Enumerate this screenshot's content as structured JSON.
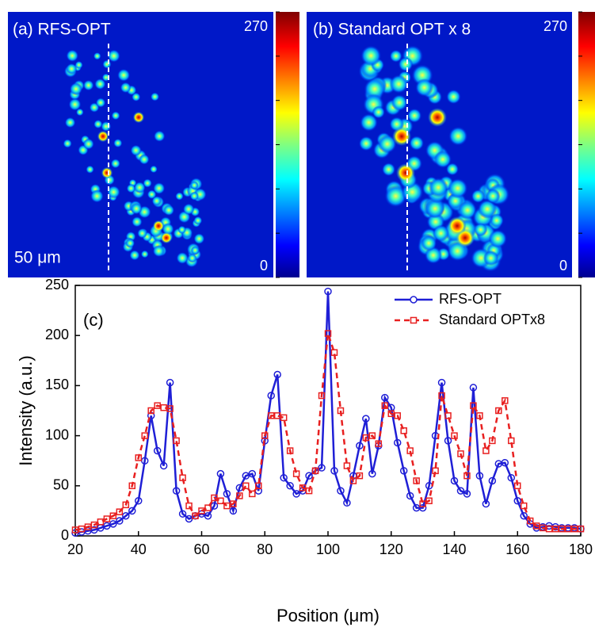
{
  "panels": [
    {
      "label": "(a) RFS-OPT",
      "max": "270",
      "min": "0",
      "scale_bar": "50 μm"
    },
    {
      "label": "(b) Standard OPT x 8",
      "max": "270",
      "min": "0"
    }
  ],
  "chart_data": {
    "type": "line",
    "label": "(c)",
    "x_label": "Position (μm)",
    "y_label": "Intensity (a.u.)",
    "x": [
      20,
      22,
      24,
      26,
      28,
      30,
      32,
      34,
      36,
      38,
      40,
      42,
      44,
      46,
      48,
      50,
      52,
      54,
      56,
      58,
      60,
      62,
      64,
      66,
      68,
      70,
      72,
      74,
      76,
      78,
      80,
      82,
      84,
      86,
      88,
      90,
      92,
      94,
      96,
      98,
      100,
      102,
      104,
      106,
      108,
      110,
      112,
      114,
      116,
      118,
      120,
      122,
      124,
      126,
      128,
      130,
      132,
      134,
      136,
      138,
      140,
      142,
      144,
      146,
      148,
      150,
      152,
      154,
      156,
      158,
      160,
      162,
      164,
      166,
      168,
      170,
      172,
      174,
      176,
      178,
      180
    ],
    "series": [
      {
        "name": "RFS-OPT",
        "color": "#1f1fd6",
        "marker": "circle",
        "dash": "solid",
        "values": [
          3,
          4,
          5,
          6,
          8,
          10,
          12,
          15,
          20,
          25,
          35,
          75,
          120,
          85,
          70,
          153,
          45,
          22,
          17,
          20,
          22,
          20,
          30,
          62,
          42,
          25,
          48,
          60,
          62,
          45,
          95,
          140,
          161,
          58,
          50,
          42,
          45,
          60,
          65,
          68,
          244,
          65,
          45,
          33,
          60,
          90,
          117,
          62,
          90,
          138,
          128,
          93,
          65,
          40,
          28,
          28,
          50,
          100,
          153,
          95,
          55,
          45,
          42,
          148,
          60,
          32,
          55,
          72,
          73,
          58,
          35,
          20,
          12,
          8,
          9,
          10,
          9,
          8,
          8,
          8,
          7
        ]
      },
      {
        "name": "Standard OPTx8",
        "color": "#e82020",
        "marker": "square",
        "dash": "dashed",
        "values": [
          6,
          7,
          9,
          11,
          14,
          17,
          20,
          24,
          31,
          50,
          78,
          100,
          125,
          130,
          128,
          127,
          95,
          58,
          30,
          20,
          25,
          28,
          38,
          35,
          30,
          32,
          40,
          50,
          42,
          50,
          100,
          120,
          120,
          118,
          85,
          62,
          48,
          45,
          65,
          140,
          202,
          183,
          125,
          70,
          55,
          60,
          98,
          100,
          92,
          130,
          122,
          120,
          105,
          85,
          55,
          32,
          35,
          65,
          140,
          120,
          100,
          82,
          60,
          130,
          120,
          85,
          95,
          125,
          135,
          95,
          50,
          30,
          15,
          10,
          8,
          7,
          7,
          7,
          7,
          7,
          7
        ]
      }
    ],
    "xlim": [
      20,
      180
    ],
    "ylim": [
      0,
      250
    ],
    "xticks": [
      20,
      40,
      60,
      80,
      100,
      120,
      140,
      160,
      180
    ],
    "yticks": [
      0,
      50,
      100,
      150,
      200,
      250
    ],
    "legend": "upper right"
  }
}
